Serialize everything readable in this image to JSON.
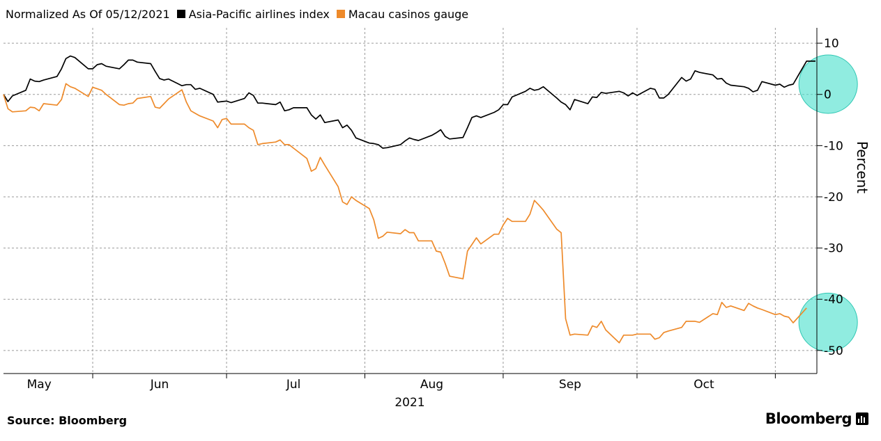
{
  "legend": {
    "normalized_label": "Normalized As Of 05/12/2021",
    "items": [
      {
        "label": "Asia-Pacific airlines index",
        "color": "#000000"
      },
      {
        "label": "Macau casinos gauge",
        "color": "#ee8a2a"
      }
    ]
  },
  "footer": {
    "source": "Source: Bloomberg",
    "brand": "Bloomberg"
  },
  "chart_data": {
    "type": "line",
    "ylabel": "Percent",
    "xlabel": "2021",
    "ylim": [
      -54.5,
      13
    ],
    "yticks": [
      10,
      0,
      -10,
      -20,
      -30,
      -40,
      -50
    ],
    "ytick_labels": [
      "10",
      "0",
      "-10",
      "-20",
      "-30",
      "-40",
      "-50"
    ],
    "grid": true,
    "x_month_labels": [
      "May",
      "Jun",
      "Jul",
      "Aug",
      "Sep",
      "Oct"
    ],
    "x_year_label": "2021",
    "date_range": [
      "2021-05-12",
      "2021-10-26"
    ],
    "highlight_circles": [
      {
        "date": "2021-10-24",
        "value": 2,
        "color": "#46e0cc"
      },
      {
        "date": "2021-10-24",
        "value": -44.5,
        "color": "#46e0cc"
      }
    ],
    "series": [
      {
        "name": "Asia-Pacific airlines index",
        "color": "#000000",
        "points": [
          [
            "2021-05-12",
            0
          ],
          [
            "2021-05-13",
            -1.4
          ],
          [
            "2021-05-14",
            -0.3
          ],
          [
            "2021-05-17",
            0.8
          ],
          [
            "2021-05-18",
            3
          ],
          [
            "2021-05-19",
            2.6
          ],
          [
            "2021-05-20",
            2.5
          ],
          [
            "2021-05-21",
            2.8
          ],
          [
            "2021-05-24",
            3.5
          ],
          [
            "2021-05-25",
            5
          ],
          [
            "2021-05-26",
            7
          ],
          [
            "2021-05-27",
            7.5
          ],
          [
            "2021-05-28",
            7.2
          ],
          [
            "2021-05-31",
            5
          ],
          [
            "2021-06-01",
            5
          ],
          [
            "2021-06-02",
            5.8
          ],
          [
            "2021-06-03",
            6
          ],
          [
            "2021-06-04",
            5.5
          ],
          [
            "2021-06-07",
            5
          ],
          [
            "2021-06-08",
            5.8
          ],
          [
            "2021-06-09",
            6.7
          ],
          [
            "2021-06-10",
            6.7
          ],
          [
            "2021-06-11",
            6.3
          ],
          [
            "2021-06-14",
            6
          ],
          [
            "2021-06-15",
            4.5
          ],
          [
            "2021-06-16",
            3.1
          ],
          [
            "2021-06-17",
            2.8
          ],
          [
            "2021-06-18",
            3
          ],
          [
            "2021-06-21",
            1.7
          ],
          [
            "2021-06-22",
            1.9
          ],
          [
            "2021-06-23",
            1.9
          ],
          [
            "2021-06-24",
            1
          ],
          [
            "2021-06-25",
            1.2
          ],
          [
            "2021-06-28",
            0
          ],
          [
            "2021-06-29",
            -1.5
          ],
          [
            "2021-06-30",
            -1.4
          ],
          [
            "2021-07-01",
            -1.3
          ],
          [
            "2021-07-02",
            -1.6
          ],
          [
            "2021-07-05",
            -0.8
          ],
          [
            "2021-07-06",
            0.3
          ],
          [
            "2021-07-07",
            -0.2
          ],
          [
            "2021-07-08",
            -1.7
          ],
          [
            "2021-07-09",
            -1.7
          ],
          [
            "2021-07-12",
            -2
          ],
          [
            "2021-07-13",
            -1.5
          ],
          [
            "2021-07-14",
            -3.2
          ],
          [
            "2021-07-15",
            -3
          ],
          [
            "2021-07-16",
            -2.6
          ],
          [
            "2021-07-19",
            -2.6
          ],
          [
            "2021-07-20",
            -4
          ],
          [
            "2021-07-21",
            -4.8
          ],
          [
            "2021-07-22",
            -4
          ],
          [
            "2021-07-23",
            -5.5
          ],
          [
            "2021-07-26",
            -5
          ],
          [
            "2021-07-27",
            -6.5
          ],
          [
            "2021-07-28",
            -6
          ],
          [
            "2021-07-29",
            -7
          ],
          [
            "2021-07-30",
            -8.5
          ],
          [
            "2021-08-02",
            -9.5
          ],
          [
            "2021-08-03",
            -9.6
          ],
          [
            "2021-08-04",
            -9.8
          ],
          [
            "2021-08-05",
            -10.5
          ],
          [
            "2021-08-06",
            -10.4
          ],
          [
            "2021-08-09",
            -9.8
          ],
          [
            "2021-08-10",
            -9.1
          ],
          [
            "2021-08-11",
            -8.5
          ],
          [
            "2021-08-12",
            -8.8
          ],
          [
            "2021-08-13",
            -9
          ],
          [
            "2021-08-16",
            -8
          ],
          [
            "2021-08-17",
            -7.5
          ],
          [
            "2021-08-18",
            -6.9
          ],
          [
            "2021-08-19",
            -8.2
          ],
          [
            "2021-08-20",
            -8.7
          ],
          [
            "2021-08-23",
            -8.4
          ],
          [
            "2021-08-24",
            -6.5
          ],
          [
            "2021-08-25",
            -4.5
          ],
          [
            "2021-08-26",
            -4.2
          ],
          [
            "2021-08-27",
            -4.5
          ],
          [
            "2021-08-30",
            -3.5
          ],
          [
            "2021-08-31",
            -3
          ],
          [
            "2021-09-01",
            -2
          ],
          [
            "2021-09-02",
            -2
          ],
          [
            "2021-09-03",
            -0.5
          ],
          [
            "2021-09-06",
            0.6
          ],
          [
            "2021-09-07",
            1.2
          ],
          [
            "2021-09-08",
            0.8
          ],
          [
            "2021-09-09",
            1
          ],
          [
            "2021-09-10",
            1.5
          ],
          [
            "2021-09-13",
            -0.7
          ],
          [
            "2021-09-14",
            -1.5
          ],
          [
            "2021-09-15",
            -2
          ],
          [
            "2021-09-16",
            -3
          ],
          [
            "2021-09-17",
            -1
          ],
          [
            "2021-09-20",
            -1.8
          ],
          [
            "2021-09-21",
            -0.5
          ],
          [
            "2021-09-22",
            -0.6
          ],
          [
            "2021-09-23",
            0.4
          ],
          [
            "2021-09-24",
            0.2
          ],
          [
            "2021-09-27",
            0.6
          ],
          [
            "2021-09-28",
            0.3
          ],
          [
            "2021-09-29",
            -0.3
          ],
          [
            "2021-09-30",
            0.3
          ],
          [
            "2021-10-01",
            -0.2
          ],
          [
            "2021-10-04",
            1.2
          ],
          [
            "2021-10-05",
            1
          ],
          [
            "2021-10-06",
            -0.7
          ],
          [
            "2021-10-07",
            -0.7
          ],
          [
            "2021-10-08",
            0
          ],
          [
            "2021-10-11",
            3.3
          ],
          [
            "2021-10-12",
            2.6
          ],
          [
            "2021-10-13",
            3
          ],
          [
            "2021-10-14",
            4.6
          ],
          [
            "2021-10-15",
            4.3
          ],
          [
            "2021-10-18",
            3.8
          ],
          [
            "2021-10-19",
            3
          ],
          [
            "2021-10-20",
            3.1
          ],
          [
            "2021-10-21",
            2.2
          ],
          [
            "2021-10-22",
            1.8
          ],
          [
            "2021-10-25",
            1.5
          ],
          [
            "2021-10-26",
            1.2
          ],
          [
            "2021-10-27",
            0.5
          ],
          [
            "2021-10-28",
            0.8
          ],
          [
            "2021-10-29",
            2.5
          ],
          [
            "2021-11-01",
            1.8
          ],
          [
            "2021-11-02",
            2
          ],
          [
            "2021-11-03",
            1.4
          ],
          [
            "2021-11-04",
            1.8
          ],
          [
            "2021-11-05",
            2
          ],
          [
            "2021-11-08",
            6.5
          ],
          [
            "2021-11-09",
            6.5
          ],
          [
            "2021-11-10",
            6.5
          ]
        ]
      },
      {
        "name": "Macau casinos gauge",
        "color": "#ee8a2a",
        "points": [
          [
            "2021-05-12",
            0
          ],
          [
            "2021-05-13",
            -2.8
          ],
          [
            "2021-05-14",
            -3.4
          ],
          [
            "2021-05-17",
            -3.2
          ],
          [
            "2021-05-18",
            -2.5
          ],
          [
            "2021-05-19",
            -2.6
          ],
          [
            "2021-05-20",
            -3.2
          ],
          [
            "2021-05-21",
            -1.8
          ],
          [
            "2021-05-24",
            -2.1
          ],
          [
            "2021-05-25",
            -1
          ],
          [
            "2021-05-26",
            2.1
          ],
          [
            "2021-05-27",
            1.5
          ],
          [
            "2021-05-28",
            1.2
          ],
          [
            "2021-05-31",
            -0.4
          ],
          [
            "2021-06-01",
            1.4
          ],
          [
            "2021-06-02",
            1.1
          ],
          [
            "2021-06-03",
            0.8
          ],
          [
            "2021-06-04",
            0
          ],
          [
            "2021-06-07",
            -2
          ],
          [
            "2021-06-08",
            -2.1
          ],
          [
            "2021-06-09",
            -1.8
          ],
          [
            "2021-06-10",
            -1.7
          ],
          [
            "2021-06-11",
            -0.8
          ],
          [
            "2021-06-14",
            -0.4
          ],
          [
            "2021-06-15",
            -2.5
          ],
          [
            "2021-06-16",
            -2.7
          ],
          [
            "2021-06-17",
            -1.8
          ],
          [
            "2021-06-18",
            -0.9
          ],
          [
            "2021-06-21",
            0.9
          ],
          [
            "2021-06-22",
            -1.5
          ],
          [
            "2021-06-23",
            -3.2
          ],
          [
            "2021-06-24",
            -3.7
          ],
          [
            "2021-06-25",
            -4.2
          ],
          [
            "2021-06-28",
            -5.2
          ],
          [
            "2021-06-29",
            -6.5
          ],
          [
            "2021-06-30",
            -4.9
          ],
          [
            "2021-07-01",
            -4.7
          ],
          [
            "2021-07-02",
            -5.8
          ],
          [
            "2021-07-05",
            -5.8
          ],
          [
            "2021-07-06",
            -6.5
          ],
          [
            "2021-07-07",
            -7
          ],
          [
            "2021-07-08",
            -9.8
          ],
          [
            "2021-07-09",
            -9.6
          ],
          [
            "2021-07-12",
            -9.3
          ],
          [
            "2021-07-13",
            -8.9
          ],
          [
            "2021-07-14",
            -9.8
          ],
          [
            "2021-07-15",
            -9.8
          ],
          [
            "2021-07-16",
            -10.5
          ],
          [
            "2021-07-19",
            -12.5
          ],
          [
            "2021-07-20",
            -15
          ],
          [
            "2021-07-21",
            -14.5
          ],
          [
            "2021-07-22",
            -12.3
          ],
          [
            "2021-07-23",
            -13.8
          ],
          [
            "2021-07-26",
            -18
          ],
          [
            "2021-07-27",
            -21
          ],
          [
            "2021-07-28",
            -21.5
          ],
          [
            "2021-07-29",
            -20
          ],
          [
            "2021-07-30",
            -20.7
          ],
          [
            "2021-08-02",
            -22.3
          ],
          [
            "2021-08-03",
            -24.5
          ],
          [
            "2021-08-04",
            -28.1
          ],
          [
            "2021-08-05",
            -27.7
          ],
          [
            "2021-08-06",
            -26.9
          ],
          [
            "2021-08-09",
            -27.2
          ],
          [
            "2021-08-10",
            -26.4
          ],
          [
            "2021-08-11",
            -27
          ],
          [
            "2021-08-12",
            -27
          ],
          [
            "2021-08-13",
            -28.6
          ],
          [
            "2021-08-16",
            -28.6
          ],
          [
            "2021-08-17",
            -30.6
          ],
          [
            "2021-08-18",
            -30.8
          ],
          [
            "2021-08-19",
            -33
          ],
          [
            "2021-08-20",
            -35.5
          ],
          [
            "2021-08-23",
            -36
          ],
          [
            "2021-08-24",
            -30.6
          ],
          [
            "2021-08-25",
            -29.3
          ],
          [
            "2021-08-26",
            -28
          ],
          [
            "2021-08-27",
            -29.2
          ],
          [
            "2021-08-30",
            -27.3
          ],
          [
            "2021-08-31",
            -27.3
          ],
          [
            "2021-09-01",
            -25.5
          ],
          [
            "2021-09-02",
            -24.2
          ],
          [
            "2021-09-03",
            -24.8
          ],
          [
            "2021-09-06",
            -24.8
          ],
          [
            "2021-09-07",
            -23.4
          ],
          [
            "2021-09-08",
            -20.7
          ],
          [
            "2021-09-09",
            -21.6
          ],
          [
            "2021-09-10",
            -22.6
          ],
          [
            "2021-09-13",
            -26.3
          ],
          [
            "2021-09-14",
            -27
          ],
          [
            "2021-09-15",
            -43.8
          ],
          [
            "2021-09-16",
            -47
          ],
          [
            "2021-09-17",
            -46.8
          ],
          [
            "2021-09-20",
            -47
          ],
          [
            "2021-09-21",
            -45.2
          ],
          [
            "2021-09-22",
            -45.5
          ],
          [
            "2021-09-23",
            -44.3
          ],
          [
            "2021-09-24",
            -46
          ],
          [
            "2021-09-27",
            -48.5
          ],
          [
            "2021-09-28",
            -47
          ],
          [
            "2021-09-29",
            -47
          ],
          [
            "2021-09-30",
            -47
          ],
          [
            "2021-10-01",
            -46.8
          ],
          [
            "2021-10-04",
            -46.8
          ],
          [
            "2021-10-05",
            -47.8
          ],
          [
            "2021-10-06",
            -47.5
          ],
          [
            "2021-10-07",
            -46.5
          ],
          [
            "2021-10-08",
            -46.2
          ],
          [
            "2021-10-11",
            -45.5
          ],
          [
            "2021-10-12",
            -44.3
          ],
          [
            "2021-10-13",
            -44.3
          ],
          [
            "2021-10-14",
            -44.3
          ],
          [
            "2021-10-15",
            -44.5
          ],
          [
            "2021-10-18",
            -42.8
          ],
          [
            "2021-10-19",
            -43
          ],
          [
            "2021-10-20",
            -40.6
          ],
          [
            "2021-10-21",
            -41.6
          ],
          [
            "2021-10-22",
            -41.3
          ],
          [
            "2021-10-25",
            -42.2
          ],
          [
            "2021-10-26",
            -40.8
          ],
          [
            "2021-10-27",
            -41.3
          ],
          [
            "2021-10-28",
            -41.7
          ],
          [
            "2021-10-29",
            -42
          ],
          [
            "2021-11-01",
            -43
          ],
          [
            "2021-11-02",
            -42.8
          ],
          [
            "2021-11-03",
            -43.3
          ],
          [
            "2021-11-04",
            -43.5
          ],
          [
            "2021-11-05",
            -44.6
          ],
          [
            "2021-11-08",
            -41.7
          ]
        ]
      }
    ]
  }
}
